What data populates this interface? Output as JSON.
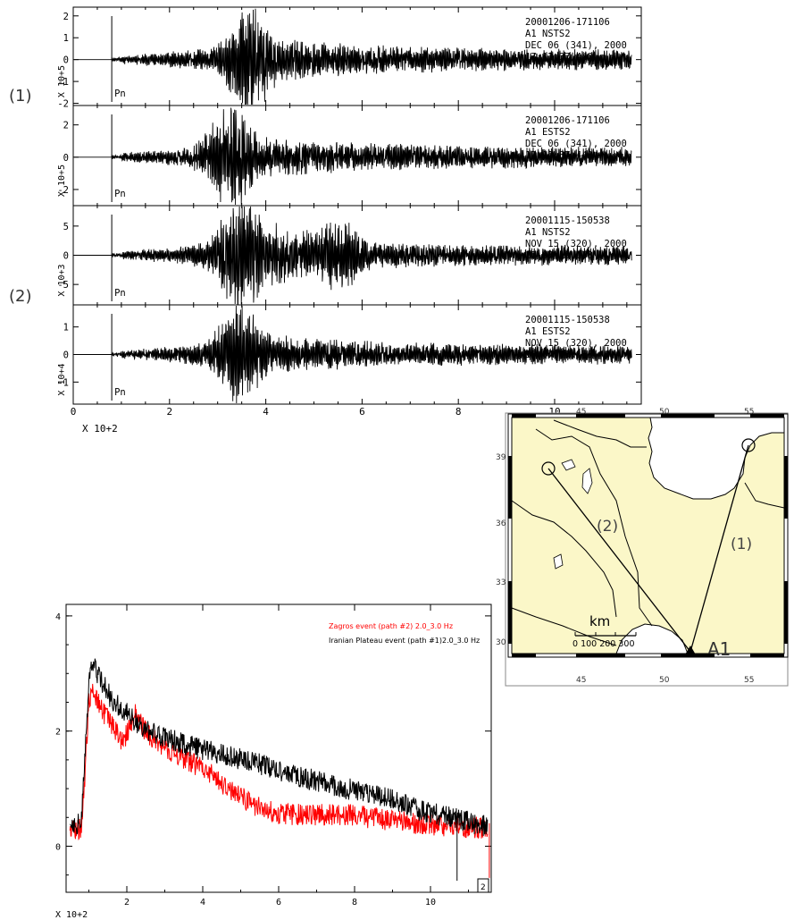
{
  "seismograms": {
    "group_labels": [
      "(1)",
      "(2)"
    ],
    "x_multiplier": "X 10+2",
    "x_ticks": [
      "0",
      "2",
      "4",
      "6",
      "8",
      "10"
    ],
    "xlim": [
      0,
      11.8
    ],
    "phase_label": "Pn",
    "traces": [
      {
        "event": "20001206-171106",
        "station": "A1   NSTS2",
        "date": "DEC 06 (341), 2000",
        "time": "17:12:37.440",
        "scale": "X 10+5",
        "yticks": [
          "2",
          "1",
          "0",
          "-1",
          "-2"
        ],
        "ylim": [
          -2.1,
          2.4
        ]
      },
      {
        "event": "20001206-171106",
        "station": "A1   ESTS2",
        "date": "DEC 06 (341), 2000",
        "time": "17:12:37.440",
        "scale": "X 10+5",
        "yticks": [
          "2",
          "0",
          "-2"
        ],
        "ylim": [
          -3.0,
          3.2
        ]
      },
      {
        "event": "20001115-150538",
        "station": "A1   NSTS2",
        "date": "NOV 15 (320), 2000",
        "time": "15:07:19.133",
        "scale": "X 10+3",
        "yticks": [
          "5",
          "0",
          "-5"
        ],
        "ylim": [
          -8.5,
          8.5
        ]
      },
      {
        "event": "20001115-150538",
        "station": "A1   ESTS2",
        "date": "NOV 15 (320), 2000",
        "time": "15:07:19.133",
        "scale": "X 10+4",
        "yticks": [
          "1",
          "0",
          "-1"
        ],
        "ylim": [
          -1.8,
          1.8
        ]
      }
    ]
  },
  "map": {
    "top_ticks": [
      "45",
      "50",
      "55"
    ],
    "bottom_ticks": [
      "45",
      "50",
      "55"
    ],
    "left_ticks": [
      "39",
      "36",
      "33",
      "30"
    ],
    "path_labels": [
      "(2)",
      "(1)"
    ],
    "station_label": "A1",
    "scale_title": "km",
    "scale_ticks": "0  100  200  300",
    "colors": {
      "land": "#fbf7c8",
      "water": "#ffffff"
    }
  },
  "chart_data": {
    "type": "line",
    "xlabel": "X 10+2",
    "x_ticks": [
      "2",
      "4",
      "6",
      "8",
      "10"
    ],
    "y_ticks": [
      "4",
      "2",
      "0"
    ],
    "xlim": [
      0.4,
      11.6
    ],
    "ylim": [
      -0.8,
      4.2
    ],
    "corner_label": "2",
    "series": [
      {
        "name": "Zagros event (path #2) 2.0_3.0 Hz",
        "color": "#ff0000",
        "x": [
          0.5,
          0.8,
          0.92,
          1.0,
          1.1,
          1.3,
          1.6,
          1.9,
          2.2,
          2.6,
          3.0,
          3.6,
          4.2,
          4.8,
          5.4,
          6.0,
          6.6,
          7.2,
          7.8,
          8.4,
          9.0,
          9.6,
          10.2,
          10.8,
          11.5
        ],
        "y": [
          0.3,
          0.3,
          1.5,
          2.5,
          2.8,
          2.4,
          2.1,
          1.8,
          2.3,
          1.9,
          1.7,
          1.5,
          1.25,
          0.95,
          0.7,
          0.55,
          0.55,
          0.55,
          0.55,
          0.5,
          0.45,
          0.4,
          0.35,
          0.35,
          0.3
        ]
      },
      {
        "name": "Iranian Plateau event (path #1)2.0_3.0 Hz",
        "color": "#000000",
        "x": [
          0.5,
          0.8,
          0.92,
          1.0,
          1.1,
          1.3,
          1.6,
          2.0,
          2.4,
          3.0,
          3.6,
          4.2,
          4.8,
          5.4,
          6.0,
          6.6,
          7.2,
          7.8,
          8.4,
          9.0,
          9.6,
          10.2,
          10.8,
          11.5
        ],
        "y": [
          0.4,
          0.4,
          1.8,
          2.9,
          3.15,
          2.9,
          2.55,
          2.3,
          2.05,
          1.9,
          1.75,
          1.65,
          1.55,
          1.45,
          1.3,
          1.2,
          1.1,
          1.0,
          0.9,
          0.8,
          0.65,
          0.55,
          0.45,
          0.35
        ]
      }
    ]
  }
}
